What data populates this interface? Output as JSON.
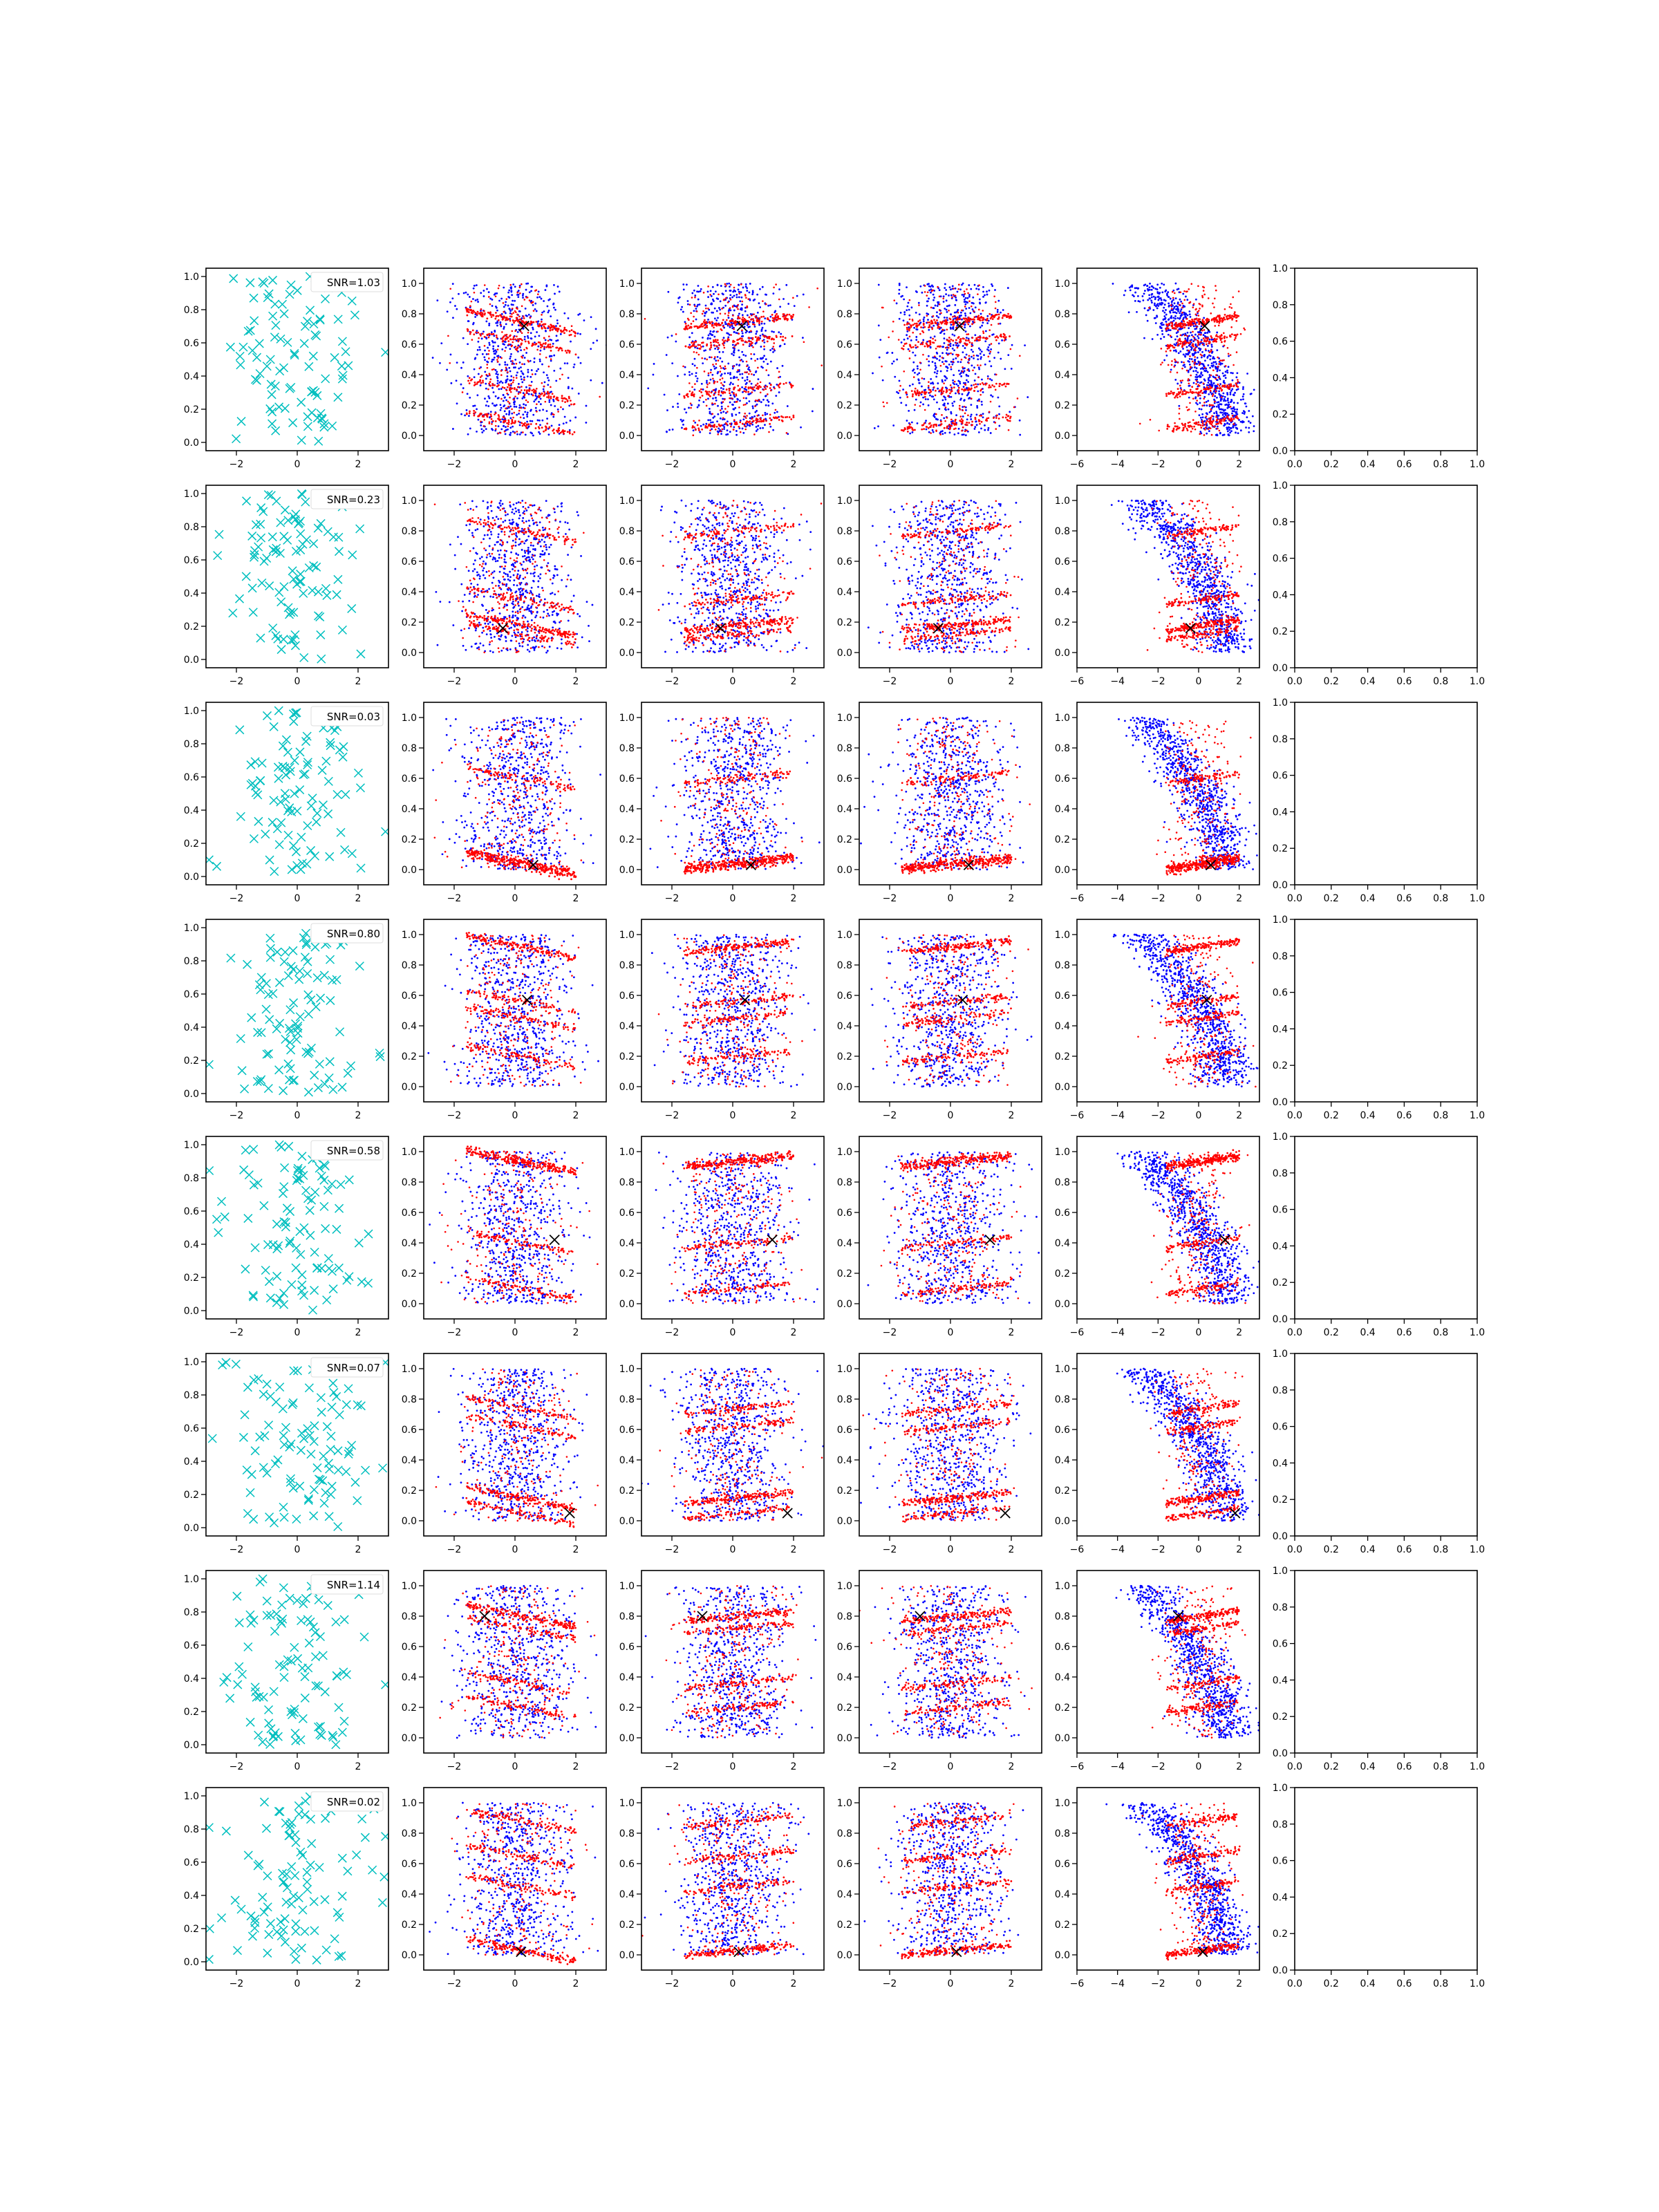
{
  "figure": {
    "rows": 8,
    "cols": 6,
    "colors": {
      "cross": "#00bfbf",
      "blue": "#0000ff",
      "red": "#ff0000",
      "center_marker": "#000000",
      "axes": "#000000",
      "background": "#ffffff"
    }
  },
  "chart_data": {
    "type": "scatter",
    "grid": false,
    "columns": [
      {
        "index": 0,
        "kind": "cross",
        "xlim": [
          -3,
          3
        ],
        "ylim": [
          -0.05,
          1.05
        ],
        "xticks": [
          -2,
          0,
          2
        ],
        "yticks": [
          0.0,
          0.2,
          0.4,
          0.6,
          0.8,
          1.0
        ]
      },
      {
        "index": 1,
        "kind": "scatter",
        "xlim": [
          -3,
          3
        ],
        "ylim": [
          -0.1,
          1.1
        ],
        "xticks": [
          -2,
          0,
          2
        ],
        "yticks": [
          0.0,
          0.2,
          0.4,
          0.6,
          0.8,
          1.0
        ]
      },
      {
        "index": 2,
        "kind": "scatter",
        "xlim": [
          -3,
          3
        ],
        "ylim": [
          -0.1,
          1.1
        ],
        "xticks": [
          -2,
          0,
          2
        ],
        "yticks": [
          0.0,
          0.2,
          0.4,
          0.6,
          0.8,
          1.0
        ]
      },
      {
        "index": 3,
        "kind": "scatter",
        "xlim": [
          -3,
          3
        ],
        "ylim": [
          -0.1,
          1.1
        ],
        "xticks": [
          -2,
          0,
          2
        ],
        "yticks": [
          0.0,
          0.2,
          0.4,
          0.6,
          0.8,
          1.0
        ]
      },
      {
        "index": 4,
        "kind": "scatter",
        "xlim": [
          -6,
          3
        ],
        "ylim": [
          -0.1,
          1.1
        ],
        "xticks": [
          -6,
          -4,
          -2,
          0,
          2
        ],
        "yticks": [
          0.0,
          0.2,
          0.4,
          0.6,
          0.8,
          1.0
        ]
      },
      {
        "index": 5,
        "kind": "empty",
        "xlim": [
          0,
          1
        ],
        "ylim": [
          0,
          1
        ],
        "xticks": [
          0.0,
          0.2,
          0.4,
          0.6,
          0.8,
          1.0
        ],
        "yticks": [
          0.0,
          0.2,
          0.4,
          0.6,
          0.8,
          1.0
        ]
      }
    ],
    "rows": [
      {
        "snr_label": "SNR=1.03",
        "red_bands": [
          0.75,
          0.3,
          0.08,
          0.62
        ],
        "center": [
          0.3,
          0.72
        ]
      },
      {
        "snr_label": "SNR=0.23",
        "red_bands": [
          0.18,
          0.8,
          0.35,
          0.12
        ],
        "center": [
          -0.4,
          0.16
        ]
      },
      {
        "snr_label": "SNR=0.03",
        "red_bands": [
          0.05,
          0.04,
          0.02,
          0.6
        ],
        "center": [
          0.6,
          0.03
        ]
      },
      {
        "snr_label": "SNR=0.80",
        "red_bands": [
          0.92,
          0.56,
          0.45,
          0.2
        ],
        "center": [
          0.4,
          0.57
        ]
      },
      {
        "snr_label": "SNR=0.58",
        "red_bands": [
          0.93,
          0.4,
          0.1,
          0.95
        ],
        "center": [
          1.3,
          0.42
        ]
      },
      {
        "snr_label": "SNR=0.07",
        "red_bands": [
          0.15,
          0.62,
          0.74,
          0.05
        ],
        "center": [
          1.8,
          0.05
        ]
      },
      {
        "snr_label": "SNR=1.14",
        "red_bands": [
          0.8,
          0.72,
          0.36,
          0.2
        ],
        "center": [
          -1.0,
          0.8
        ]
      },
      {
        "snr_label": "SNR=0.02",
        "red_bands": [
          0.03,
          0.45,
          0.88,
          0.65
        ],
        "center": [
          0.2,
          0.02
        ]
      }
    ]
  }
}
